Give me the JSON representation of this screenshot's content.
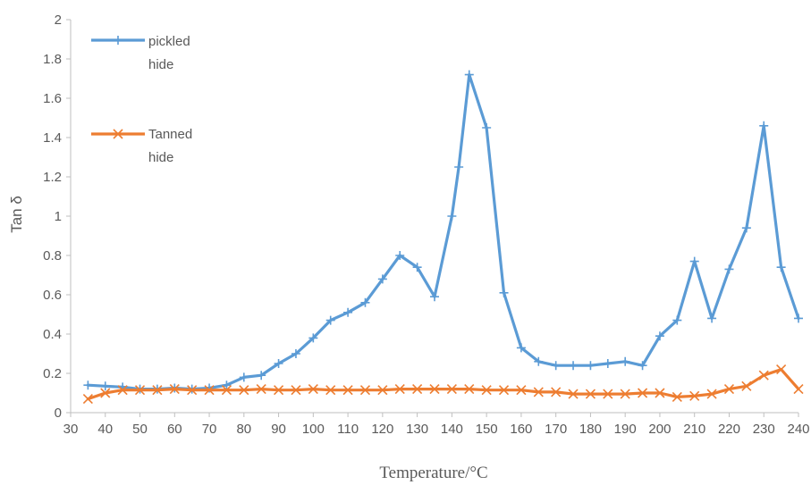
{
  "chart_data": {
    "type": "line",
    "title": "",
    "xlabel": "Temperature/°C",
    "ylabel": "Tan δ",
    "xlim": [
      30,
      240
    ],
    "ylim": [
      0,
      2
    ],
    "x_ticks": [
      "30",
      "40",
      "50",
      "60",
      "70",
      "80",
      "90",
      "100",
      "110",
      "120",
      "130",
      "140",
      "150",
      "160",
      "170",
      "180",
      "190",
      "200",
      "210",
      "220",
      "230",
      "240"
    ],
    "y_ticks": [
      "0",
      "0.2",
      "0.4",
      "0.6",
      "0.8",
      "1",
      "1.2",
      "1.4",
      "1.6",
      "1.8",
      "2"
    ],
    "grid": false,
    "legend_position": "top-left",
    "series": [
      {
        "name": "pickled hide",
        "legend_lines": [
          "pickled",
          "hide"
        ],
        "color": "#5B9BD5",
        "marker": "plus",
        "points": [
          [
            35,
            0.14
          ],
          [
            40,
            0.135
          ],
          [
            45,
            0.13
          ],
          [
            50,
            0.12
          ],
          [
            55,
            0.12
          ],
          [
            60,
            0.125
          ],
          [
            65,
            0.12
          ],
          [
            70,
            0.125
          ],
          [
            75,
            0.14
          ],
          [
            80,
            0.18
          ],
          [
            85,
            0.19
          ],
          [
            90,
            0.25
          ],
          [
            95,
            0.3
          ],
          [
            100,
            0.38
          ],
          [
            105,
            0.47
          ],
          [
            110,
            0.51
          ],
          [
            115,
            0.56
          ],
          [
            120,
            0.68
          ],
          [
            125,
            0.8
          ],
          [
            130,
            0.74
          ],
          [
            135,
            0.59
          ],
          [
            140,
            1.0
          ],
          [
            142,
            1.25
          ],
          [
            145,
            1.72
          ],
          [
            150,
            1.45
          ],
          [
            155,
            0.61
          ],
          [
            160,
            0.33
          ],
          [
            165,
            0.26
          ],
          [
            170,
            0.24
          ],
          [
            175,
            0.24
          ],
          [
            180,
            0.24
          ],
          [
            185,
            0.25
          ],
          [
            190,
            0.26
          ],
          [
            195,
            0.24
          ],
          [
            200,
            0.39
          ],
          [
            205,
            0.47
          ],
          [
            210,
            0.77
          ],
          [
            215,
            0.48
          ],
          [
            220,
            0.73
          ],
          [
            225,
            0.94
          ],
          [
            230,
            1.46
          ],
          [
            235,
            0.74
          ],
          [
            240,
            0.48
          ]
        ]
      },
      {
        "name": "Tanned hide",
        "legend_lines": [
          "Tanned",
          "hide"
        ],
        "color": "#ED7D31",
        "marker": "x",
        "points": [
          [
            35,
            0.07
          ],
          [
            40,
            0.1
          ],
          [
            45,
            0.115
          ],
          [
            50,
            0.115
          ],
          [
            55,
            0.115
          ],
          [
            60,
            0.12
          ],
          [
            65,
            0.115
          ],
          [
            70,
            0.115
          ],
          [
            75,
            0.115
          ],
          [
            80,
            0.115
          ],
          [
            85,
            0.12
          ],
          [
            90,
            0.115
          ],
          [
            95,
            0.115
          ],
          [
            100,
            0.12
          ],
          [
            105,
            0.115
          ],
          [
            110,
            0.115
          ],
          [
            115,
            0.115
          ],
          [
            120,
            0.115
          ],
          [
            125,
            0.12
          ],
          [
            130,
            0.12
          ],
          [
            135,
            0.12
          ],
          [
            140,
            0.12
          ],
          [
            145,
            0.12
          ],
          [
            150,
            0.115
          ],
          [
            155,
            0.115
          ],
          [
            160,
            0.115
          ],
          [
            165,
            0.105
          ],
          [
            170,
            0.105
          ],
          [
            175,
            0.095
          ],
          [
            180,
            0.095
          ],
          [
            185,
            0.095
          ],
          [
            190,
            0.095
          ],
          [
            195,
            0.1
          ],
          [
            200,
            0.1
          ],
          [
            205,
            0.08
          ],
          [
            210,
            0.085
          ],
          [
            215,
            0.095
          ],
          [
            220,
            0.12
          ],
          [
            225,
            0.135
          ],
          [
            230,
            0.19
          ],
          [
            235,
            0.22
          ],
          [
            240,
            0.12
          ]
        ]
      }
    ]
  }
}
